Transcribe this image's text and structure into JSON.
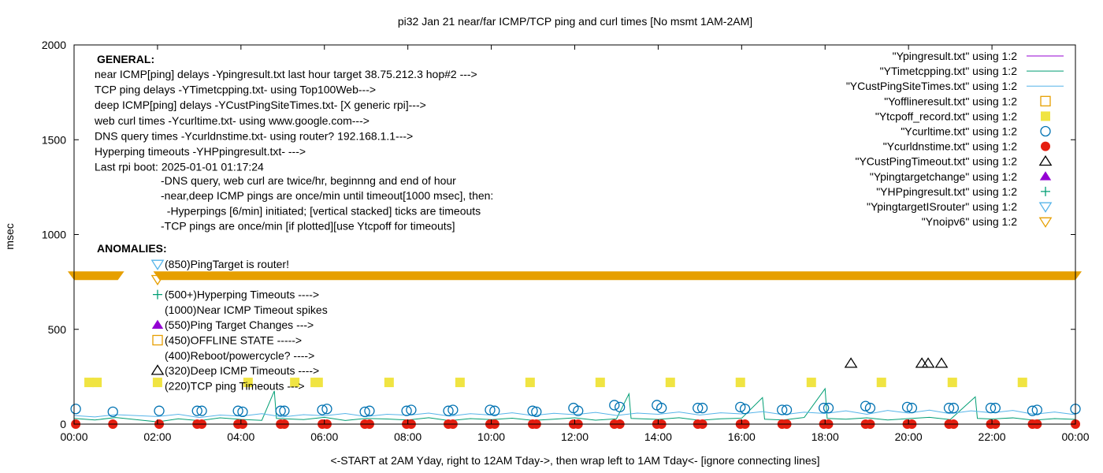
{
  "chart_data": {
    "type": "line",
    "title": "pi32 Jan 21  near/far ICMP/TCP ping and curl times [No msmt 1AM-2AM]",
    "xlabel": "<-START at 2AM Yday, right to 12AM Tday->, then wrap left to 1AM Tday<- [ignore connecting lines]",
    "ylabel": "msec",
    "xlim": [
      0,
      24
    ],
    "ylim": [
      0,
      2000
    ],
    "x_ticks": [
      "00:00",
      "02:00",
      "04:00",
      "06:00",
      "08:00",
      "10:00",
      "12:00",
      "14:00",
      "16:00",
      "18:00",
      "20:00",
      "22:00",
      "00:00"
    ],
    "y_ticks": [
      "0",
      "500",
      "1000",
      "1500",
      "2000"
    ],
    "grid": false,
    "legend_position": "top-right",
    "annotations": {
      "general_header": "GENERAL:",
      "general_lines": [
        "near ICMP[ping] delays -Ypingresult.txt last hour target 38.75.212.3 hop#2 --->",
        "TCP ping delays -YTimetcpping.txt- using Top100Web--->",
        "deep ICMP[ping] delays -YCustPingSiteTimes.txt- [X generic rpi]--->",
        "web curl times -Ycurltime.txt- using www.google.com--->",
        "DNS query times -Ycurldnstime.txt- using router? 192.168.1.1--->",
        "Hyperping timeouts -YHPpingresult.txt- --->",
        "Last rpi boot: 2025-01-01 01:17:24"
      ],
      "notes": [
        "-DNS query, web curl are twice/hr, beginnng and end of hour",
        "-near,deep ICMP pings are once/min until timeout[1000 msec], then:",
        "  -Hyperpings [6/min] initiated; [vertical stacked] ticks are timeouts",
        "-TCP pings are once/min [if plotted][use Ytcpoff for timeouts]"
      ],
      "anomalies_header": "ANOMALIES:",
      "anomalies": [
        {
          "marker": "triangle-down-lightblue",
          "text": "(850)PingTarget is router!"
        },
        {
          "marker": "triangle-down-orange",
          "text": ""
        },
        {
          "marker": "plus-green",
          "text": "(500+)Hyperping Timeouts ---->"
        },
        {
          "marker": "none",
          "text": "(1000)Near ICMP Timeout spikes"
        },
        {
          "marker": "triangle-up-purple",
          "text": "(550)Ping Target Changes --->"
        },
        {
          "marker": "square-open-orange",
          "text": "(450)OFFLINE STATE ----->"
        },
        {
          "marker": "none",
          "text": "(400)Reboot/powercycle? ---->"
        },
        {
          "marker": "triangle-up-open-black",
          "text": "(320)Deep ICMP Timeouts ---->"
        },
        {
          "marker": "none",
          "text": "(220)TCP ping Timeouts --->"
        }
      ]
    },
    "series": [
      {
        "name": "\"Ypingresult.txt\" using 1:2",
        "style": "line",
        "color": "#9400d3",
        "points": []
      },
      {
        "name": "\"YTimetcpping.txt\" using 1:2",
        "style": "line",
        "color": "#009e73",
        "points": [
          [
            0,
            30
          ],
          [
            0.5,
            22
          ],
          [
            1.0,
            35
          ],
          [
            2.0,
            12
          ],
          [
            2.5,
            28
          ],
          [
            3.0,
            18
          ],
          [
            3.5,
            33
          ],
          [
            4.0,
            25
          ],
          [
            4.5,
            20
          ],
          [
            4.8,
            175
          ],
          [
            4.85,
            30
          ],
          [
            5.5,
            24
          ],
          [
            6.0,
            36
          ],
          [
            6.5,
            19
          ],
          [
            7.0,
            30
          ],
          [
            7.5,
            27
          ],
          [
            8.0,
            22
          ],
          [
            8.5,
            34
          ],
          [
            9.0,
            18
          ],
          [
            9.5,
            29
          ],
          [
            10.0,
            24
          ],
          [
            10.5,
            31
          ],
          [
            11.0,
            20
          ],
          [
            11.5,
            26
          ],
          [
            12.0,
            33
          ],
          [
            12.5,
            21
          ],
          [
            13.0,
            28
          ],
          [
            13.3,
            160
          ],
          [
            13.35,
            30
          ],
          [
            14.0,
            25
          ],
          [
            14.5,
            34
          ],
          [
            15.0,
            20
          ],
          [
            15.5,
            28
          ],
          [
            16.0,
            31
          ],
          [
            16.5,
            140
          ],
          [
            16.55,
            26
          ],
          [
            17.0,
            22
          ],
          [
            17.5,
            35
          ],
          [
            18.0,
            187
          ],
          [
            18.05,
            30
          ],
          [
            18.5,
            26
          ],
          [
            19.0,
            33
          ],
          [
            19.5,
            22
          ],
          [
            20.0,
            29
          ],
          [
            20.5,
            36
          ],
          [
            21.0,
            24
          ],
          [
            21.6,
            144
          ],
          [
            21.65,
            30
          ],
          [
            22.0,
            27
          ],
          [
            22.5,
            33
          ],
          [
            23.0,
            21
          ],
          [
            23.5,
            29
          ],
          [
            24.0,
            25
          ]
        ]
      },
      {
        "name": "\"YCustPingSiteTimes.txt\" using 1:2",
        "style": "line",
        "color": "#56b4e9",
        "points": [
          [
            0,
            45
          ],
          [
            0.5,
            38
          ],
          [
            1.0,
            50
          ],
          [
            2.0,
            40
          ],
          [
            2.5,
            52
          ],
          [
            3.0,
            35
          ],
          [
            3.5,
            48
          ],
          [
            4.0,
            42
          ],
          [
            4.5,
            55
          ],
          [
            5.0,
            38
          ],
          [
            5.5,
            50
          ],
          [
            6.0,
            44
          ],
          [
            6.5,
            56
          ],
          [
            7.0,
            40
          ],
          [
            7.5,
            52
          ],
          [
            8.0,
            47
          ],
          [
            8.5,
            58
          ],
          [
            9.0,
            42
          ],
          [
            9.5,
            55
          ],
          [
            10.0,
            48
          ],
          [
            10.5,
            60
          ],
          [
            11.0,
            45
          ],
          [
            11.5,
            57
          ],
          [
            12.0,
            50
          ],
          [
            12.5,
            62
          ],
          [
            13.0,
            46
          ],
          [
            13.5,
            58
          ],
          [
            14.0,
            52
          ],
          [
            14.5,
            64
          ],
          [
            15.0,
            48
          ],
          [
            15.5,
            60
          ],
          [
            16.0,
            54
          ],
          [
            16.5,
            66
          ],
          [
            17.0,
            50
          ],
          [
            17.5,
            63
          ],
          [
            18.0,
            56
          ],
          [
            18.5,
            70
          ],
          [
            19.0,
            52
          ],
          [
            19.5,
            72
          ],
          [
            20.0,
            58
          ],
          [
            20.5,
            74
          ],
          [
            21.0,
            55
          ],
          [
            21.5,
            70
          ],
          [
            22.0,
            60
          ],
          [
            22.5,
            72
          ],
          [
            23.0,
            52
          ],
          [
            23.5,
            64
          ],
          [
            24.0,
            50
          ]
        ]
      },
      {
        "name": "\"Yofflineresult.txt\" using 1:2",
        "style": "square-open",
        "color": "#e69f00",
        "points": []
      },
      {
        "name": "\"Ytcpoff_record.txt\" using 1:2",
        "style": "square-filled",
        "color": "#f0e442",
        "points": [
          [
            0.36,
            220
          ],
          [
            0.55,
            220
          ],
          [
            2.0,
            220
          ],
          [
            4.17,
            220
          ],
          [
            5.29,
            220
          ],
          [
            5.78,
            220
          ],
          [
            5.85,
            220
          ],
          [
            7.55,
            220
          ],
          [
            9.25,
            220
          ],
          [
            10.93,
            220
          ],
          [
            12.61,
            220
          ],
          [
            14.29,
            220
          ],
          [
            15.97,
            220
          ],
          [
            17.67,
            220
          ],
          [
            19.35,
            220
          ],
          [
            21.05,
            220
          ],
          [
            22.73,
            220
          ]
        ]
      },
      {
        "name": "\"Ycurltime.txt\" using 1:2",
        "style": "circle-open",
        "color": "#0072b2",
        "points": [
          [
            0.04,
            80
          ],
          [
            0.93,
            65
          ],
          [
            2.04,
            70
          ],
          [
            2.95,
            70
          ],
          [
            3.06,
            70
          ],
          [
            3.93,
            70
          ],
          [
            4.04,
            65
          ],
          [
            4.95,
            70
          ],
          [
            5.04,
            70
          ],
          [
            5.95,
            75
          ],
          [
            6.06,
            80
          ],
          [
            6.97,
            65
          ],
          [
            7.08,
            70
          ],
          [
            7.97,
            70
          ],
          [
            8.08,
            75
          ],
          [
            8.97,
            70
          ],
          [
            9.08,
            75
          ],
          [
            9.97,
            75
          ],
          [
            10.08,
            70
          ],
          [
            10.99,
            70
          ],
          [
            11.08,
            65
          ],
          [
            11.97,
            85
          ],
          [
            12.08,
            70
          ],
          [
            12.95,
            100
          ],
          [
            13.08,
            90
          ],
          [
            13.97,
            100
          ],
          [
            14.08,
            85
          ],
          [
            14.95,
            85
          ],
          [
            15.06,
            85
          ],
          [
            15.97,
            90
          ],
          [
            16.08,
            80
          ],
          [
            16.97,
            75
          ],
          [
            17.08,
            75
          ],
          [
            17.97,
            85
          ],
          [
            18.08,
            85
          ],
          [
            18.97,
            95
          ],
          [
            19.08,
            85
          ],
          [
            19.97,
            90
          ],
          [
            20.08,
            85
          ],
          [
            20.97,
            85
          ],
          [
            21.08,
            85
          ],
          [
            21.97,
            85
          ],
          [
            22.08,
            85
          ],
          [
            22.97,
            70
          ],
          [
            23.08,
            75
          ],
          [
            24.0,
            80
          ]
        ]
      },
      {
        "name": "\"Ycurldnstime.txt\" using 1:2",
        "style": "circle-filled",
        "color": "#e51e10",
        "points": [
          [
            0.04,
            0
          ],
          [
            0.93,
            0
          ],
          [
            2.04,
            0
          ],
          [
            2.95,
            0
          ],
          [
            3.06,
            0
          ],
          [
            3.93,
            0
          ],
          [
            4.04,
            0
          ],
          [
            4.95,
            0
          ],
          [
            5.04,
            0
          ],
          [
            5.95,
            0
          ],
          [
            6.06,
            0
          ],
          [
            6.97,
            0
          ],
          [
            7.08,
            0
          ],
          [
            7.97,
            0
          ],
          [
            8.08,
            0
          ],
          [
            8.97,
            0
          ],
          [
            9.08,
            0
          ],
          [
            9.97,
            0
          ],
          [
            10.08,
            0
          ],
          [
            10.99,
            0
          ],
          [
            11.08,
            0
          ],
          [
            11.97,
            0
          ],
          [
            12.08,
            0
          ],
          [
            12.95,
            0
          ],
          [
            13.08,
            0
          ],
          [
            13.97,
            0
          ],
          [
            14.08,
            0
          ],
          [
            14.95,
            0
          ],
          [
            15.06,
            0
          ],
          [
            15.97,
            0
          ],
          [
            16.08,
            0
          ],
          [
            16.97,
            0
          ],
          [
            17.08,
            0
          ],
          [
            17.97,
            0
          ],
          [
            18.08,
            0
          ],
          [
            18.97,
            0
          ],
          [
            19.08,
            0
          ],
          [
            19.97,
            0
          ],
          [
            20.08,
            0
          ],
          [
            20.97,
            0
          ],
          [
            21.08,
            0
          ],
          [
            21.97,
            0
          ],
          [
            22.08,
            0
          ],
          [
            22.97,
            0
          ],
          [
            23.08,
            0
          ],
          [
            24.0,
            0
          ]
        ]
      },
      {
        "name": "\"YCustPingTimeout.txt\" using 1:2",
        "style": "triangle-up-open",
        "color": "#000000",
        "points": [
          [
            18.62,
            320
          ],
          [
            20.32,
            320
          ],
          [
            20.47,
            320
          ],
          [
            20.79,
            320
          ]
        ]
      },
      {
        "name": "\"Ypingtargetchange\" using 1:2",
        "style": "triangle-up-filled",
        "color": "#9400d3",
        "points": []
      },
      {
        "name": "\"YHPpingresult.txt\" using 1:2",
        "style": "plus",
        "color": "#009e73",
        "points": []
      },
      {
        "name": "\"YpingtargetISrouter\" using 1:2",
        "style": "triangle-down-open",
        "color": "#56b4e9",
        "points": []
      },
      {
        "name": "\"Ynoipv6\" using 1:2",
        "style": "triangle-down-open",
        "color": "#e69f00",
        "value": 785,
        "x_ranges": [
          [
            0,
            1.05
          ],
          [
            2.05,
            24
          ]
        ]
      }
    ]
  }
}
